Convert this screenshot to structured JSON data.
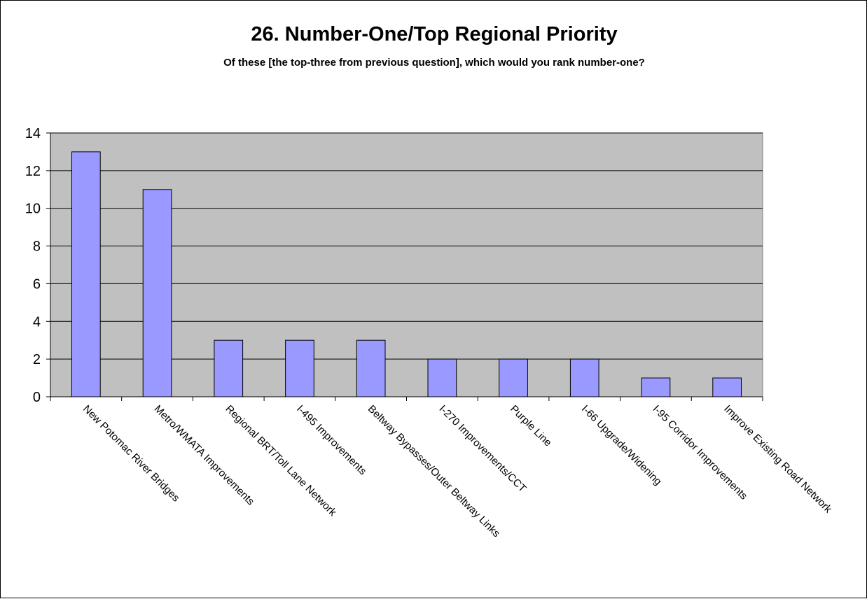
{
  "chart_data": {
    "type": "bar",
    "title": "26.  Number-One/Top Regional Priority",
    "subtitle": "Of these [the top-three from previous question], which would you rank number-one?",
    "categories": [
      "New Potomac River Bridges",
      "Metro/WMATA Improvements",
      "Regional BRT/Toll Lane Network",
      "I-495 Improvements",
      "Beltway Bypasses/Outer Beltway Links",
      "I-270 Improvements/CCT",
      "Purple Line",
      "I-66 Upgrade/Widening",
      "I-95 Corridor Improvements",
      "Improve Existing Road Network"
    ],
    "values": [
      13,
      11,
      3,
      3,
      3,
      2,
      2,
      2,
      1,
      1
    ],
    "ylim": [
      0,
      14
    ],
    "yticks": [
      0,
      2,
      4,
      6,
      8,
      10,
      12,
      14
    ],
    "grid": true,
    "legend": "none",
    "colors": {
      "bar": "#9999ff",
      "plot_bg": "#c0c0c0",
      "grid": "#000000"
    }
  }
}
